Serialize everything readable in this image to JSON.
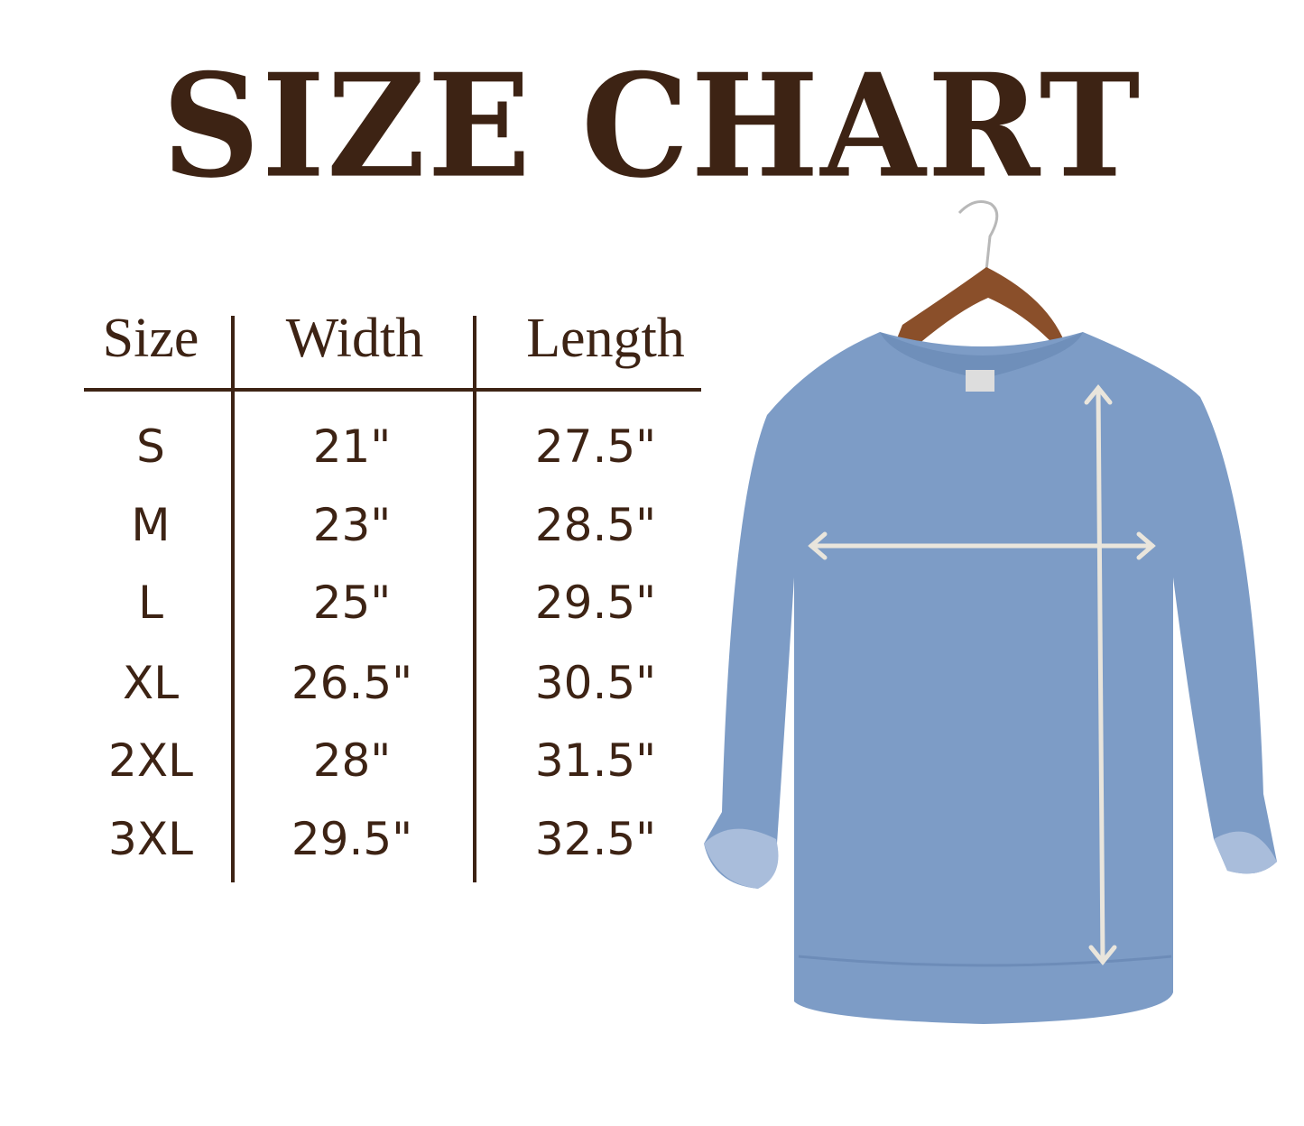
{
  "title": "SIZE CHART",
  "table": {
    "headers": [
      "Size",
      "Width",
      "Length"
    ],
    "rows": [
      [
        "S",
        "21\"",
        "27.5\""
      ],
      [
        "M",
        "23\"",
        "28.5\""
      ],
      [
        "L",
        "25\"",
        "29.5\""
      ],
      [
        "XL",
        "26.5\"",
        "30.5\""
      ],
      [
        "2XL",
        "28\"",
        "31.5\""
      ],
      [
        "3XL",
        "29.5\"",
        "32.5\""
      ]
    ]
  },
  "colors": {
    "text": "#3d2314",
    "garment": "#7d9cc6",
    "arrow": "#e9e5dc",
    "hanger": "#8a4f2a"
  },
  "image": {
    "label": "sweatshirt-on-hanger-with-measurement-arrows"
  }
}
